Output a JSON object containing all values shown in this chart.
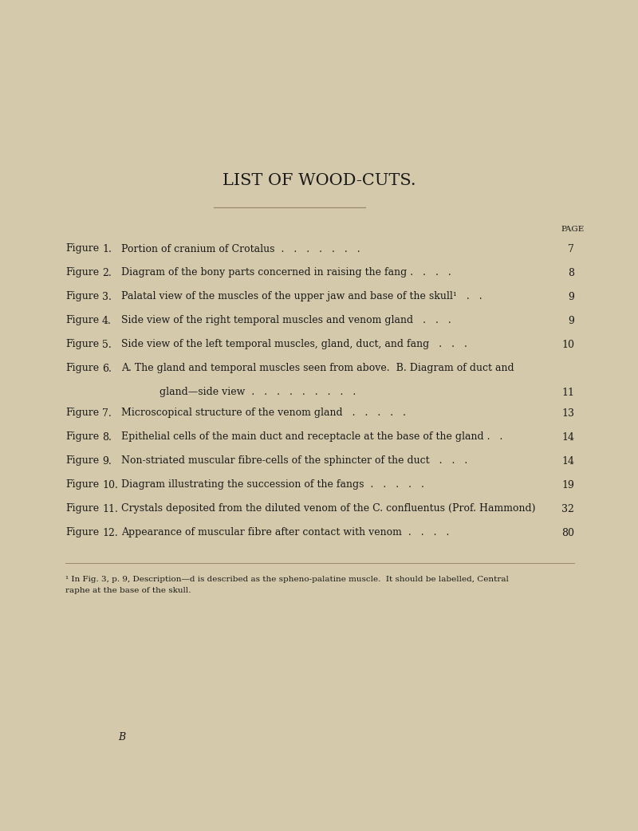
{
  "background_color": "#d4c9aa",
  "title": "LIST OF WOOD-CUTS.",
  "title_fontsize": 15,
  "figures": [
    {
      "num": "1.",
      "label": "Figure",
      "text": "Portion of cranium of Crotalus  .   .   .   .   .   .   .",
      "page": "7",
      "continuation": false
    },
    {
      "num": "2.",
      "label": "Figure",
      "text": "Diagram of the bony parts concerned in raising the fang .   .   .   .",
      "page": "8",
      "continuation": false
    },
    {
      "num": "3.",
      "label": "Figure",
      "text": "Palatal view of the muscles of the upper jaw and base of the skull¹   .   .",
      "page": "9",
      "continuation": false
    },
    {
      "num": "4.",
      "label": "Figure",
      "text": "Side view of the right temporal muscles and venom gland   .   .   .",
      "page": "9",
      "continuation": false
    },
    {
      "num": "5.",
      "label": "Figure",
      "text": "Side view of the left temporal muscles, gland, duct, and fang   .   .   .",
      "page": "10",
      "continuation": false
    },
    {
      "num": "6.",
      "label": "Figure",
      "text": "A. The gland and temporal muscles seen from above.  B. Diagram of duct and",
      "page": "",
      "continuation": false
    },
    {
      "num": "",
      "label": "",
      "text": "gland—side view  .   .   .   .   .   .   .   .   .",
      "page": "11",
      "continuation": true
    },
    {
      "num": "7.",
      "label": "Figure",
      "text": "Microscopical structure of the venom gland   .   .   .   .   .",
      "page": "13",
      "continuation": false
    },
    {
      "num": "8.",
      "label": "Figure",
      "text": "Epithelial cells of the main duct and receptacle at the base of the gland .   .",
      "page": "14",
      "continuation": false
    },
    {
      "num": "9.",
      "label": "Figure",
      "text": "Non-striated muscular fibre-cells of the sphincter of the duct   .   .   .",
      "page": "14",
      "continuation": false
    },
    {
      "num": "10.",
      "label": "Figure",
      "text": "Diagram illustrating the succession of the fangs  .   .   .   .   .",
      "page": "19",
      "continuation": false
    },
    {
      "num": "11.",
      "label": "Figure",
      "text": "Crystals deposited from the diluted venom of the C. confluentus (Prof. Hammond)",
      "page": "32",
      "continuation": false
    },
    {
      "num": "12.",
      "label": "Figure",
      "text": "Appearance of muscular fibre after contact with venom  .   .   .   .",
      "page": "80",
      "continuation": false
    }
  ],
  "footnote_line1": "¹ In Fig. 3, p. 9, Description—d is described as the spheno-palatine muscle.  It should be labelled, Central",
  "footnote_line2": "raphe at the base of the skull.",
  "bottom_letter": "B",
  "text_color": "#1a1a1a",
  "line_color": "#9a8a6a"
}
